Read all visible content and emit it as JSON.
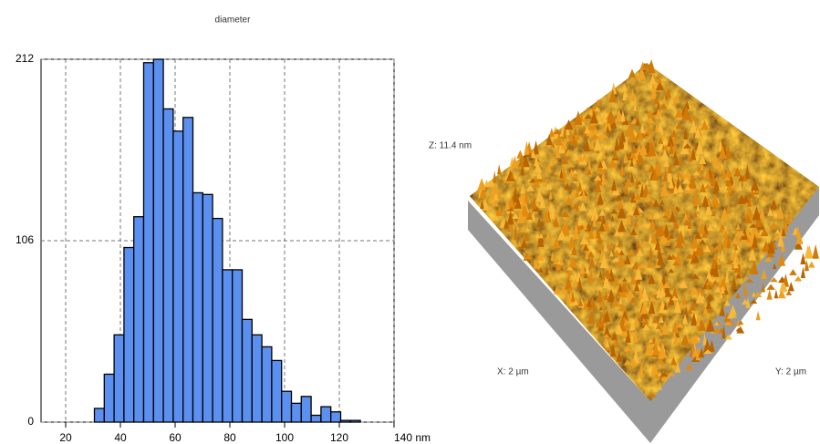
{
  "chart_data": {
    "type": "histogram",
    "title": "diameter",
    "bins": [
      30.5,
      34.1,
      37.7,
      41.3,
      44.9,
      48.5,
      52.1,
      55.7,
      59.3,
      62.9,
      66.5,
      70.1,
      73.7,
      77.3,
      80.9,
      84.5,
      88.1,
      91.7,
      95.3,
      98.9,
      102.5,
      106.1,
      109.7,
      113.3,
      116.9,
      120.5,
      124.1,
      127.7
    ],
    "values": [
      8,
      28,
      51,
      102,
      120,
      210,
      212,
      183,
      170,
      178,
      134,
      133,
      119,
      89,
      89,
      60,
      51,
      44,
      36,
      18,
      11,
      15,
      4,
      9,
      6,
      1,
      1
    ],
    "color": "#5b8ff0",
    "xlim": [
      11,
      140
    ],
    "xticks": [
      20,
      40,
      60,
      80,
      100,
      120,
      {
        "value": 140,
        "label": "140 nm"
      }
    ],
    "ylim": [
      0,
      212
    ],
    "yticks": [
      0,
      106,
      212
    ],
    "grid": true
  },
  "surface": {
    "z_label": "Z: 11.4 nm",
    "x_label": "X: 2 µm",
    "y_label": "Y: 2 µm"
  }
}
